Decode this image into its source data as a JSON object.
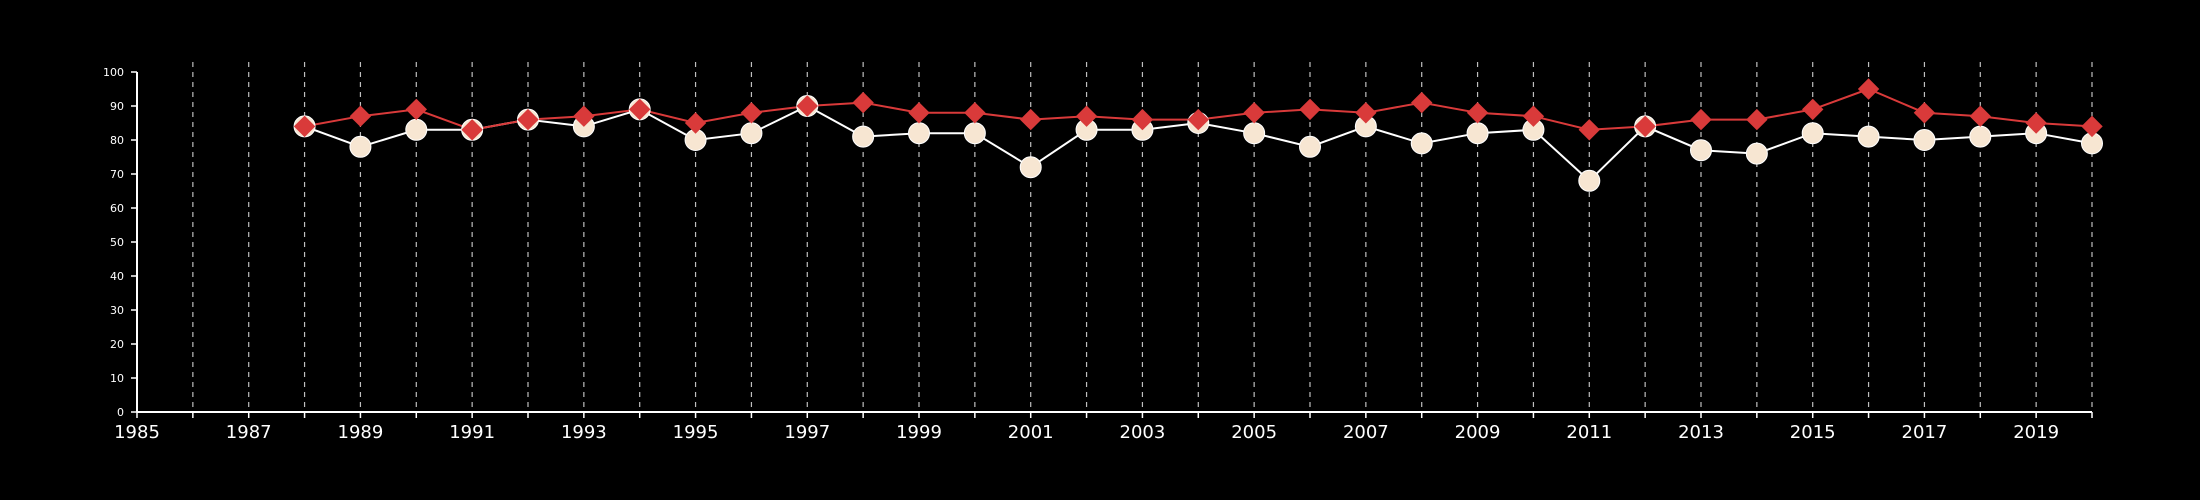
{
  "colors": {
    "background": "#000000",
    "axis": "#ffffff",
    "grid": "#bfbfbf",
    "series_a": "#d93a3a",
    "series_b_fill": "#f7e6d2",
    "series_b_line": "#ffffff"
  },
  "chart_data": {
    "type": "line",
    "title": "",
    "xlabel": "",
    "ylabel": "",
    "xlim": [
      1985,
      2020
    ],
    "ylim": [
      0,
      100
    ],
    "x_ticks": [
      1985,
      1987,
      1989,
      1991,
      1993,
      1995,
      1997,
      1999,
      2001,
      2003,
      2005,
      2007,
      2009,
      2011,
      2013,
      2015,
      2017,
      2019
    ],
    "y_ticks": [
      0,
      10,
      20,
      30,
      40,
      50,
      60,
      70,
      80,
      90,
      100
    ],
    "vertical_grid": "dashed, every year",
    "horizontal_grid": false,
    "legend": "none",
    "x": [
      1988,
      1989,
      1990,
      1991,
      1992,
      1993,
      1994,
      1995,
      1996,
      1997,
      1998,
      1999,
      2000,
      2001,
      2002,
      2003,
      2004,
      2005,
      2006,
      2007,
      2008,
      2009,
      2010,
      2011,
      2012,
      2013,
      2014,
      2015,
      2016,
      2017,
      2018,
      2019,
      2020
    ],
    "series": [
      {
        "marker": "diamond",
        "color": "#d93a3a",
        "values": [
          84,
          87,
          89,
          83,
          86,
          87,
          89,
          85,
          88,
          90,
          91,
          88,
          88,
          86,
          87,
          86,
          86,
          88,
          89,
          88,
          91,
          88,
          87,
          83,
          84,
          86,
          86,
          89,
          95,
          88,
          87,
          85,
          84
        ]
      },
      {
        "marker": "circle",
        "color": "#f7e6d2",
        "values": [
          84,
          78,
          83,
          83,
          86,
          84,
          89,
          80,
          82,
          90,
          81,
          82,
          82,
          72,
          83,
          83,
          85,
          82,
          78,
          84,
          79,
          82,
          83,
          68,
          84,
          77,
          76,
          82,
          81,
          80,
          81,
          82,
          79
        ]
      }
    ]
  }
}
